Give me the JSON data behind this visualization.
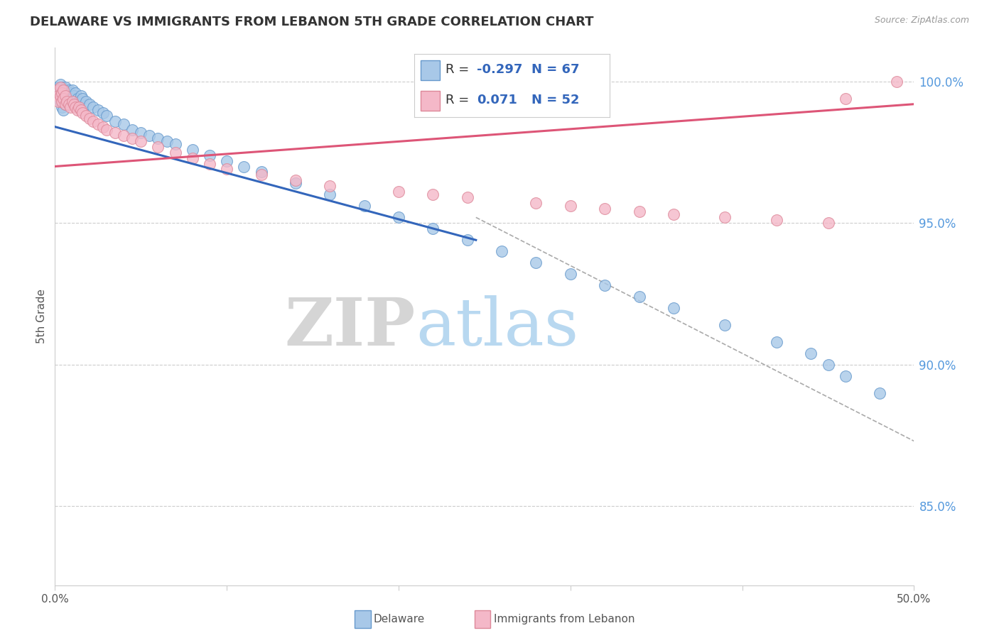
{
  "title": "DELAWARE VS IMMIGRANTS FROM LEBANON 5TH GRADE CORRELATION CHART",
  "source_text": "Source: ZipAtlas.com",
  "ylabel": "5th Grade",
  "y_tick_labels": [
    "85.0%",
    "90.0%",
    "95.0%",
    "100.0%"
  ],
  "y_tick_values": [
    0.85,
    0.9,
    0.95,
    1.0
  ],
  "x_min": 0.0,
  "x_max": 0.5,
  "y_min": 0.822,
  "y_max": 1.012,
  "R_blue": -0.297,
  "N_blue": 67,
  "R_pink": 0.071,
  "N_pink": 52,
  "blue_color": "#a8c8e8",
  "pink_color": "#f4b8c8",
  "blue_edge": "#6699cc",
  "pink_edge": "#dd8899",
  "watermark_zip_color": "#d8d8d8",
  "watermark_atlas_color": "#b8d8f0",
  "blue_trend_color": "#3366bb",
  "pink_trend_color": "#dd5577",
  "dash_color": "#aaaaaa",
  "blue_points_x": [
    0.001,
    0.002,
    0.002,
    0.003,
    0.003,
    0.003,
    0.004,
    0.004,
    0.004,
    0.005,
    0.005,
    0.005,
    0.006,
    0.006,
    0.006,
    0.007,
    0.007,
    0.008,
    0.008,
    0.009,
    0.009,
    0.01,
    0.01,
    0.011,
    0.012,
    0.012,
    0.013,
    0.014,
    0.015,
    0.016,
    0.018,
    0.02,
    0.022,
    0.025,
    0.028,
    0.03,
    0.035,
    0.04,
    0.045,
    0.05,
    0.055,
    0.06,
    0.065,
    0.07,
    0.08,
    0.09,
    0.1,
    0.11,
    0.12,
    0.14,
    0.16,
    0.18,
    0.2,
    0.22,
    0.24,
    0.26,
    0.28,
    0.3,
    0.32,
    0.34,
    0.36,
    0.39,
    0.42,
    0.44,
    0.45,
    0.46,
    0.48
  ],
  "blue_points_y": [
    0.998,
    0.997,
    0.995,
    0.999,
    0.996,
    0.993,
    0.998,
    0.995,
    0.991,
    0.997,
    0.994,
    0.99,
    0.998,
    0.995,
    0.992,
    0.996,
    0.993,
    0.997,
    0.994,
    0.996,
    0.993,
    0.997,
    0.994,
    0.995,
    0.996,
    0.993,
    0.994,
    0.993,
    0.995,
    0.994,
    0.993,
    0.992,
    0.991,
    0.99,
    0.989,
    0.988,
    0.986,
    0.985,
    0.983,
    0.982,
    0.981,
    0.98,
    0.979,
    0.978,
    0.976,
    0.974,
    0.972,
    0.97,
    0.968,
    0.964,
    0.96,
    0.956,
    0.952,
    0.948,
    0.944,
    0.94,
    0.936,
    0.932,
    0.928,
    0.924,
    0.92,
    0.914,
    0.908,
    0.904,
    0.9,
    0.896,
    0.89
  ],
  "pink_points_x": [
    0.001,
    0.002,
    0.002,
    0.003,
    0.003,
    0.004,
    0.004,
    0.005,
    0.005,
    0.006,
    0.006,
    0.007,
    0.008,
    0.009,
    0.01,
    0.011,
    0.012,
    0.013,
    0.014,
    0.015,
    0.016,
    0.018,
    0.02,
    0.022,
    0.025,
    0.028,
    0.03,
    0.035,
    0.04,
    0.045,
    0.05,
    0.06,
    0.07,
    0.08,
    0.09,
    0.1,
    0.12,
    0.14,
    0.16,
    0.2,
    0.22,
    0.24,
    0.28,
    0.3,
    0.32,
    0.34,
    0.36,
    0.39,
    0.42,
    0.45,
    0.46,
    0.49
  ],
  "pink_points_y": [
    0.997,
    0.995,
    0.993,
    0.998,
    0.995,
    0.996,
    0.993,
    0.997,
    0.994,
    0.995,
    0.992,
    0.993,
    0.992,
    0.991,
    0.993,
    0.992,
    0.991,
    0.99,
    0.991,
    0.99,
    0.989,
    0.988,
    0.987,
    0.986,
    0.985,
    0.984,
    0.983,
    0.982,
    0.981,
    0.98,
    0.979,
    0.977,
    0.975,
    0.973,
    0.971,
    0.969,
    0.967,
    0.965,
    0.963,
    0.961,
    0.96,
    0.959,
    0.957,
    0.956,
    0.955,
    0.954,
    0.953,
    0.952,
    0.951,
    0.95,
    0.994,
    1.0
  ],
  "blue_line_x": [
    0.0,
    0.245
  ],
  "blue_line_y": [
    0.984,
    0.944
  ],
  "pink_line_x": [
    0.0,
    0.5
  ],
  "pink_line_y": [
    0.97,
    0.992
  ],
  "dash_line_x": [
    0.245,
    0.5
  ],
  "dash_line_y": [
    0.952,
    0.873
  ]
}
